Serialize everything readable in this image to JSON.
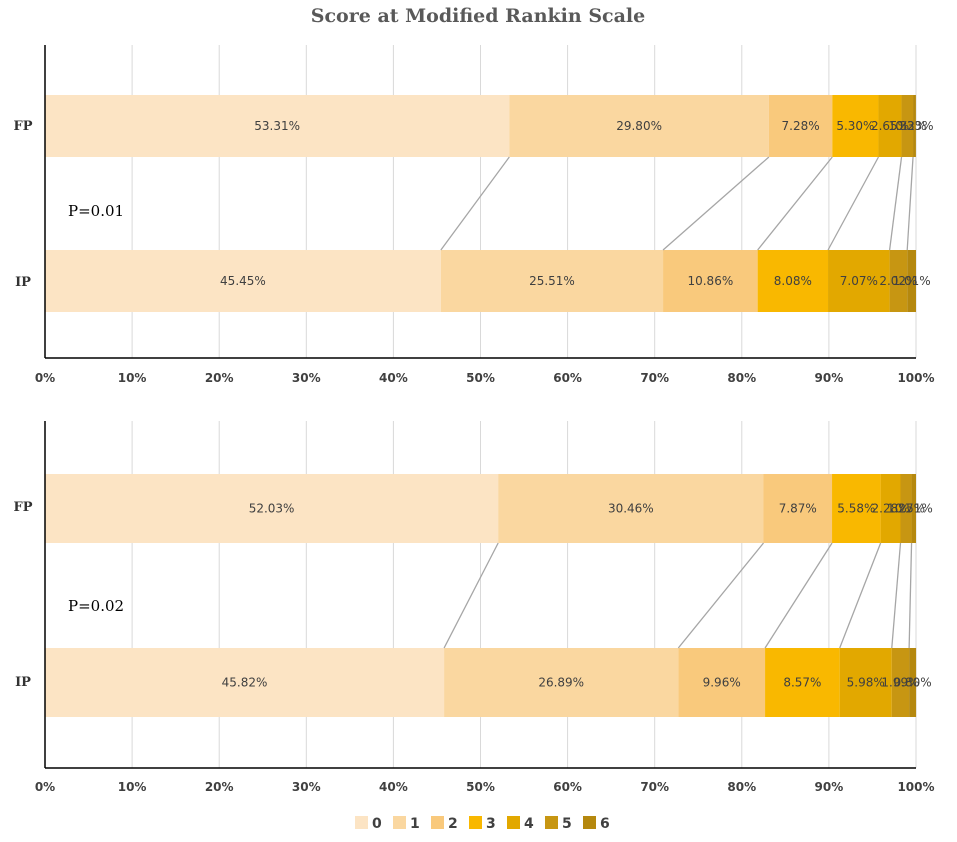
{
  "chart_data": {
    "type": "bar",
    "title": "Score at Modified Rankin Scale",
    "stacked": "100%",
    "orientation": "horizontal",
    "legend": {
      "placement": "bottom",
      "entries": [
        "0",
        "1",
        "2",
        "3",
        "4",
        "5",
        "6"
      ],
      "colors": [
        "#FCE4C4",
        "#FAD7A0",
        "#F9C97C",
        "#F9B800",
        "#E2A800",
        "#C79612",
        "#B5880E"
      ]
    },
    "panels": [
      {
        "annotation": "P=0.01",
        "categories": [
          "FP",
          "IP"
        ],
        "xlim": [
          0,
          100
        ],
        "ticks": [
          "0%",
          "10%",
          "20%",
          "30%",
          "40%",
          "50%",
          "60%",
          "70%",
          "80%",
          "90%",
          "100%"
        ],
        "grid": true,
        "series": [
          {
            "name": "0",
            "values": [
              53.31,
              45.45
            ],
            "labels": [
              "53.31%",
              "45.45%"
            ]
          },
          {
            "name": "1",
            "values": [
              29.8,
              25.51
            ],
            "labels": [
              "29.80%",
              "25.51%"
            ]
          },
          {
            "name": "2",
            "values": [
              7.28,
              10.86
            ],
            "labels": [
              "7.28%",
              "10.86%"
            ]
          },
          {
            "name": "3",
            "values": [
              5.3,
              8.08
            ],
            "labels": [
              "5.30%",
              "8.08%"
            ]
          },
          {
            "name": "4",
            "values": [
              2.65,
              7.07
            ],
            "labels": [
              "2.65%",
              "7.07%"
            ]
          },
          {
            "name": "5",
            "values": [
              1.32,
              2.02
            ],
            "labels": [
              "1.32%",
              "2.02%"
            ]
          },
          {
            "name": "6",
            "values": [
              0.33,
              1.01
            ],
            "labels": [
              "0.33%",
              "1.01%"
            ]
          }
        ]
      },
      {
        "annotation": "P=0.02",
        "categories": [
          "FP",
          "IP"
        ],
        "xlim": [
          0,
          100
        ],
        "ticks": [
          "0%",
          "10%",
          "20%",
          "30%",
          "40%",
          "50%",
          "60%",
          "70%",
          "80%",
          "90%",
          "100%"
        ],
        "grid": true,
        "series": [
          {
            "name": "0",
            "values": [
              52.03,
              45.82
            ],
            "labels": [
              "52.03%",
              "45.82%"
            ]
          },
          {
            "name": "1",
            "values": [
              30.46,
              26.89
            ],
            "labels": [
              "30.46%",
              "26.89%"
            ]
          },
          {
            "name": "2",
            "values": [
              7.87,
              9.96
            ],
            "labels": [
              "7.87%",
              "9.96%"
            ]
          },
          {
            "name": "3",
            "values": [
              5.58,
              8.57
            ],
            "labels": [
              "5.58%",
              "8.57%"
            ]
          },
          {
            "name": "4",
            "values": [
              2.28,
              5.98
            ],
            "labels": [
              "2.28%",
              "5.98%"
            ]
          },
          {
            "name": "5",
            "values": [
              1.27,
              1.99
            ],
            "labels": [
              "1.27%",
              "1.99%"
            ]
          },
          {
            "name": "6",
            "values": [
              0.51,
              0.8
            ],
            "labels": [
              "0.51%",
              "0.80%"
            ]
          }
        ]
      }
    ]
  }
}
